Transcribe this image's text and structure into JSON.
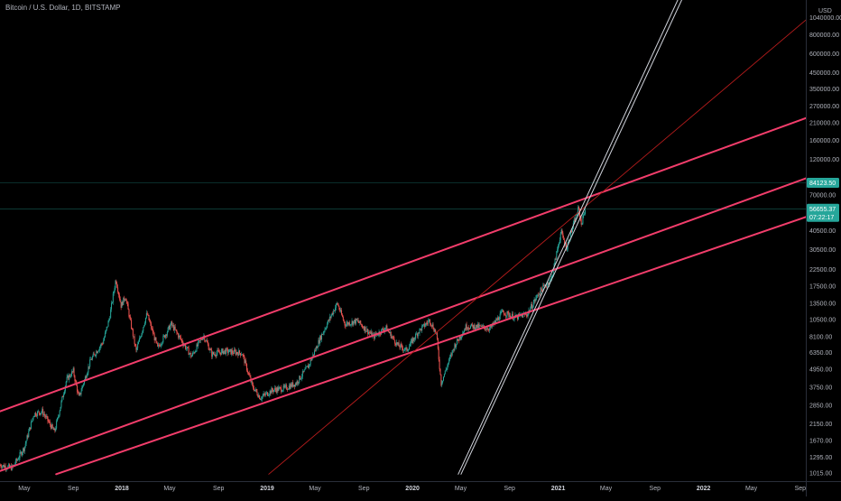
{
  "header": {
    "symbol_line": "Bitcoin / U.S. Dollar, 1D, BITSTAMP"
  },
  "price_axis": {
    "unit": "USD",
    "ticks": [
      1015,
      1295,
      1670,
      2150,
      2850,
      3750,
      4950,
      6350,
      8100,
      10500,
      13500,
      17500,
      22500,
      30500,
      40500,
      55000,
      70000,
      90000,
      120000,
      160000,
      210000,
      270000,
      350000,
      450000,
      600000,
      800000,
      1040000
    ],
    "tick_labels": [
      "1015.00",
      "1295.00",
      "1670.00",
      "2150.00",
      "2850.00",
      "3750.00",
      "4950.00",
      "6350.00",
      "8100.00",
      "10500.00",
      "13500.00",
      "17500.00",
      "22500.00",
      "30500.00",
      "40500.00",
      "",
      "70000.00",
      "",
      "120000.00",
      "160000.00",
      "210000.00",
      "270000.00",
      "350000.00",
      "450000.00",
      "600000.00",
      "800000.00",
      "1040000.00"
    ],
    "scale": "log",
    "range": [
      900,
      1150000
    ]
  },
  "time_axis": {
    "labels": [
      {
        "text": "May",
        "date": "2017-05-01",
        "bold": false
      },
      {
        "text": "Sep",
        "date": "2017-09-01",
        "bold": false
      },
      {
        "text": "2018",
        "date": "2018-01-01",
        "bold": true
      },
      {
        "text": "May",
        "date": "2018-05-01",
        "bold": false
      },
      {
        "text": "Sep",
        "date": "2018-09-01",
        "bold": false
      },
      {
        "text": "2019",
        "date": "2019-01-01",
        "bold": true
      },
      {
        "text": "May",
        "date": "2019-05-01",
        "bold": false
      },
      {
        "text": "Sep",
        "date": "2019-09-01",
        "bold": false
      },
      {
        "text": "2020",
        "date": "2020-01-01",
        "bold": true
      },
      {
        "text": "May",
        "date": "2020-05-01",
        "bold": false
      },
      {
        "text": "Sep",
        "date": "2020-09-01",
        "bold": false
      },
      {
        "text": "2021",
        "date": "2021-01-01",
        "bold": true
      },
      {
        "text": "May",
        "date": "2021-05-01",
        "bold": false
      },
      {
        "text": "Sep",
        "date": "2021-09-01",
        "bold": false
      },
      {
        "text": "2022",
        "date": "2022-01-01",
        "bold": true
      },
      {
        "text": "May",
        "date": "2022-05-01",
        "bold": false
      },
      {
        "text": "Sep",
        "date": "2022-09-01",
        "bold": false
      }
    ],
    "range": [
      "2017-03-01",
      "2022-09-15"
    ]
  },
  "markers": {
    "target": {
      "label": "84123.50",
      "value": 84123.5,
      "color": "#26a69a"
    },
    "last": {
      "price": "56655.37",
      "countdown": "07:22:17",
      "value": 56655.37,
      "color": "#26a69a"
    }
  },
  "colors": {
    "background": "#000000",
    "up": "#26a69a",
    "down": "#ef5350",
    "channel": "#f23d6b",
    "thin_trend": "#b71c1c",
    "steep": "#d1d4dc",
    "axis_text": "#b2b5be"
  },
  "chart_data": {
    "type": "candlestick",
    "scale": "log",
    "price_path": [
      [
        "2017-03-01",
        1150
      ],
      [
        "2017-04-01",
        1100
      ],
      [
        "2017-05-01",
        1500
      ],
      [
        "2017-05-25",
        2500
      ],
      [
        "2017-06-15",
        2600
      ],
      [
        "2017-07-16",
        1900
      ],
      [
        "2017-08-15",
        4200
      ],
      [
        "2017-09-01",
        4800
      ],
      [
        "2017-09-15",
        3200
      ],
      [
        "2017-10-15",
        5700
      ],
      [
        "2017-11-15",
        7500
      ],
      [
        "2017-12-01",
        10800
      ],
      [
        "2017-12-17",
        19500
      ],
      [
        "2017-12-30",
        13000
      ],
      [
        "2018-01-10",
        15000
      ],
      [
        "2018-02-06",
        6500
      ],
      [
        "2018-03-05",
        11500
      ],
      [
        "2018-04-01",
        6800
      ],
      [
        "2018-05-05",
        9800
      ],
      [
        "2018-06-25",
        6000
      ],
      [
        "2018-07-25",
        8300
      ],
      [
        "2018-08-15",
        6200
      ],
      [
        "2018-09-15",
        6500
      ],
      [
        "2018-10-30",
        6300
      ],
      [
        "2018-11-25",
        3800
      ],
      [
        "2018-12-15",
        3200
      ],
      [
        "2019-01-15",
        3600
      ],
      [
        "2019-02-15",
        3700
      ],
      [
        "2019-03-15",
        4000
      ],
      [
        "2019-04-15",
        5200
      ],
      [
        "2019-05-15",
        8000
      ],
      [
        "2019-06-26",
        13500
      ],
      [
        "2019-07-15",
        9800
      ],
      [
        "2019-08-15",
        10300
      ],
      [
        "2019-09-25",
        8100
      ],
      [
        "2019-10-26",
        9300
      ],
      [
        "2019-11-25",
        7100
      ],
      [
        "2019-12-17",
        6600
      ],
      [
        "2020-01-15",
        8700
      ],
      [
        "2020-02-13",
        10400
      ],
      [
        "2020-03-01",
        8500
      ],
      [
        "2020-03-13",
        4000
      ],
      [
        "2020-04-15",
        7000
      ],
      [
        "2020-05-15",
        9500
      ],
      [
        "2020-06-15",
        9400
      ],
      [
        "2020-07-15",
        9200
      ],
      [
        "2020-08-15",
        11800
      ],
      [
        "2020-09-15",
        10800
      ],
      [
        "2020-10-15",
        11400
      ],
      [
        "2020-11-15",
        16000
      ],
      [
        "2020-12-15",
        19500
      ],
      [
        "2021-01-08",
        40000
      ],
      [
        "2021-01-22",
        31000
      ],
      [
        "2021-02-10",
        46000
      ],
      [
        "2021-02-21",
        57000
      ],
      [
        "2021-02-28",
        45000
      ],
      [
        "2021-03-10",
        56600
      ]
    ],
    "trend_lines": [
      {
        "name": "channel-upper",
        "kind": "channel",
        "points": [
          [
            "2017-03-01",
            2600
          ],
          [
            "2022-09-15",
            225000
          ]
        ]
      },
      {
        "name": "channel-middle",
        "kind": "channel",
        "points": [
          [
            "2017-03-01",
            1050
          ],
          [
            "2022-09-15",
            90000
          ]
        ]
      },
      {
        "name": "channel-lower",
        "kind": "channel",
        "points": [
          [
            "2017-07-20",
            1000
          ],
          [
            "2022-09-15",
            50000
          ]
        ]
      },
      {
        "name": "thin-trend",
        "kind": "thin",
        "points": [
          [
            "2019-01-05",
            1000
          ],
          [
            "2022-09-15",
            1000000
          ]
        ]
      },
      {
        "name": "steep-line-a",
        "kind": "steep",
        "points": [
          [
            "2020-04-25",
            1000
          ],
          [
            "2021-11-10",
            1600000
          ]
        ]
      },
      {
        "name": "steep-line-b",
        "kind": "steep",
        "points": [
          [
            "2020-05-02",
            1000
          ],
          [
            "2021-11-20",
            1600000
          ]
        ]
      }
    ],
    "horizontal_lines": [
      {
        "name": "target-level",
        "value": 84123.5
      },
      {
        "name": "last-price-level",
        "value": 56655.37
      }
    ]
  }
}
